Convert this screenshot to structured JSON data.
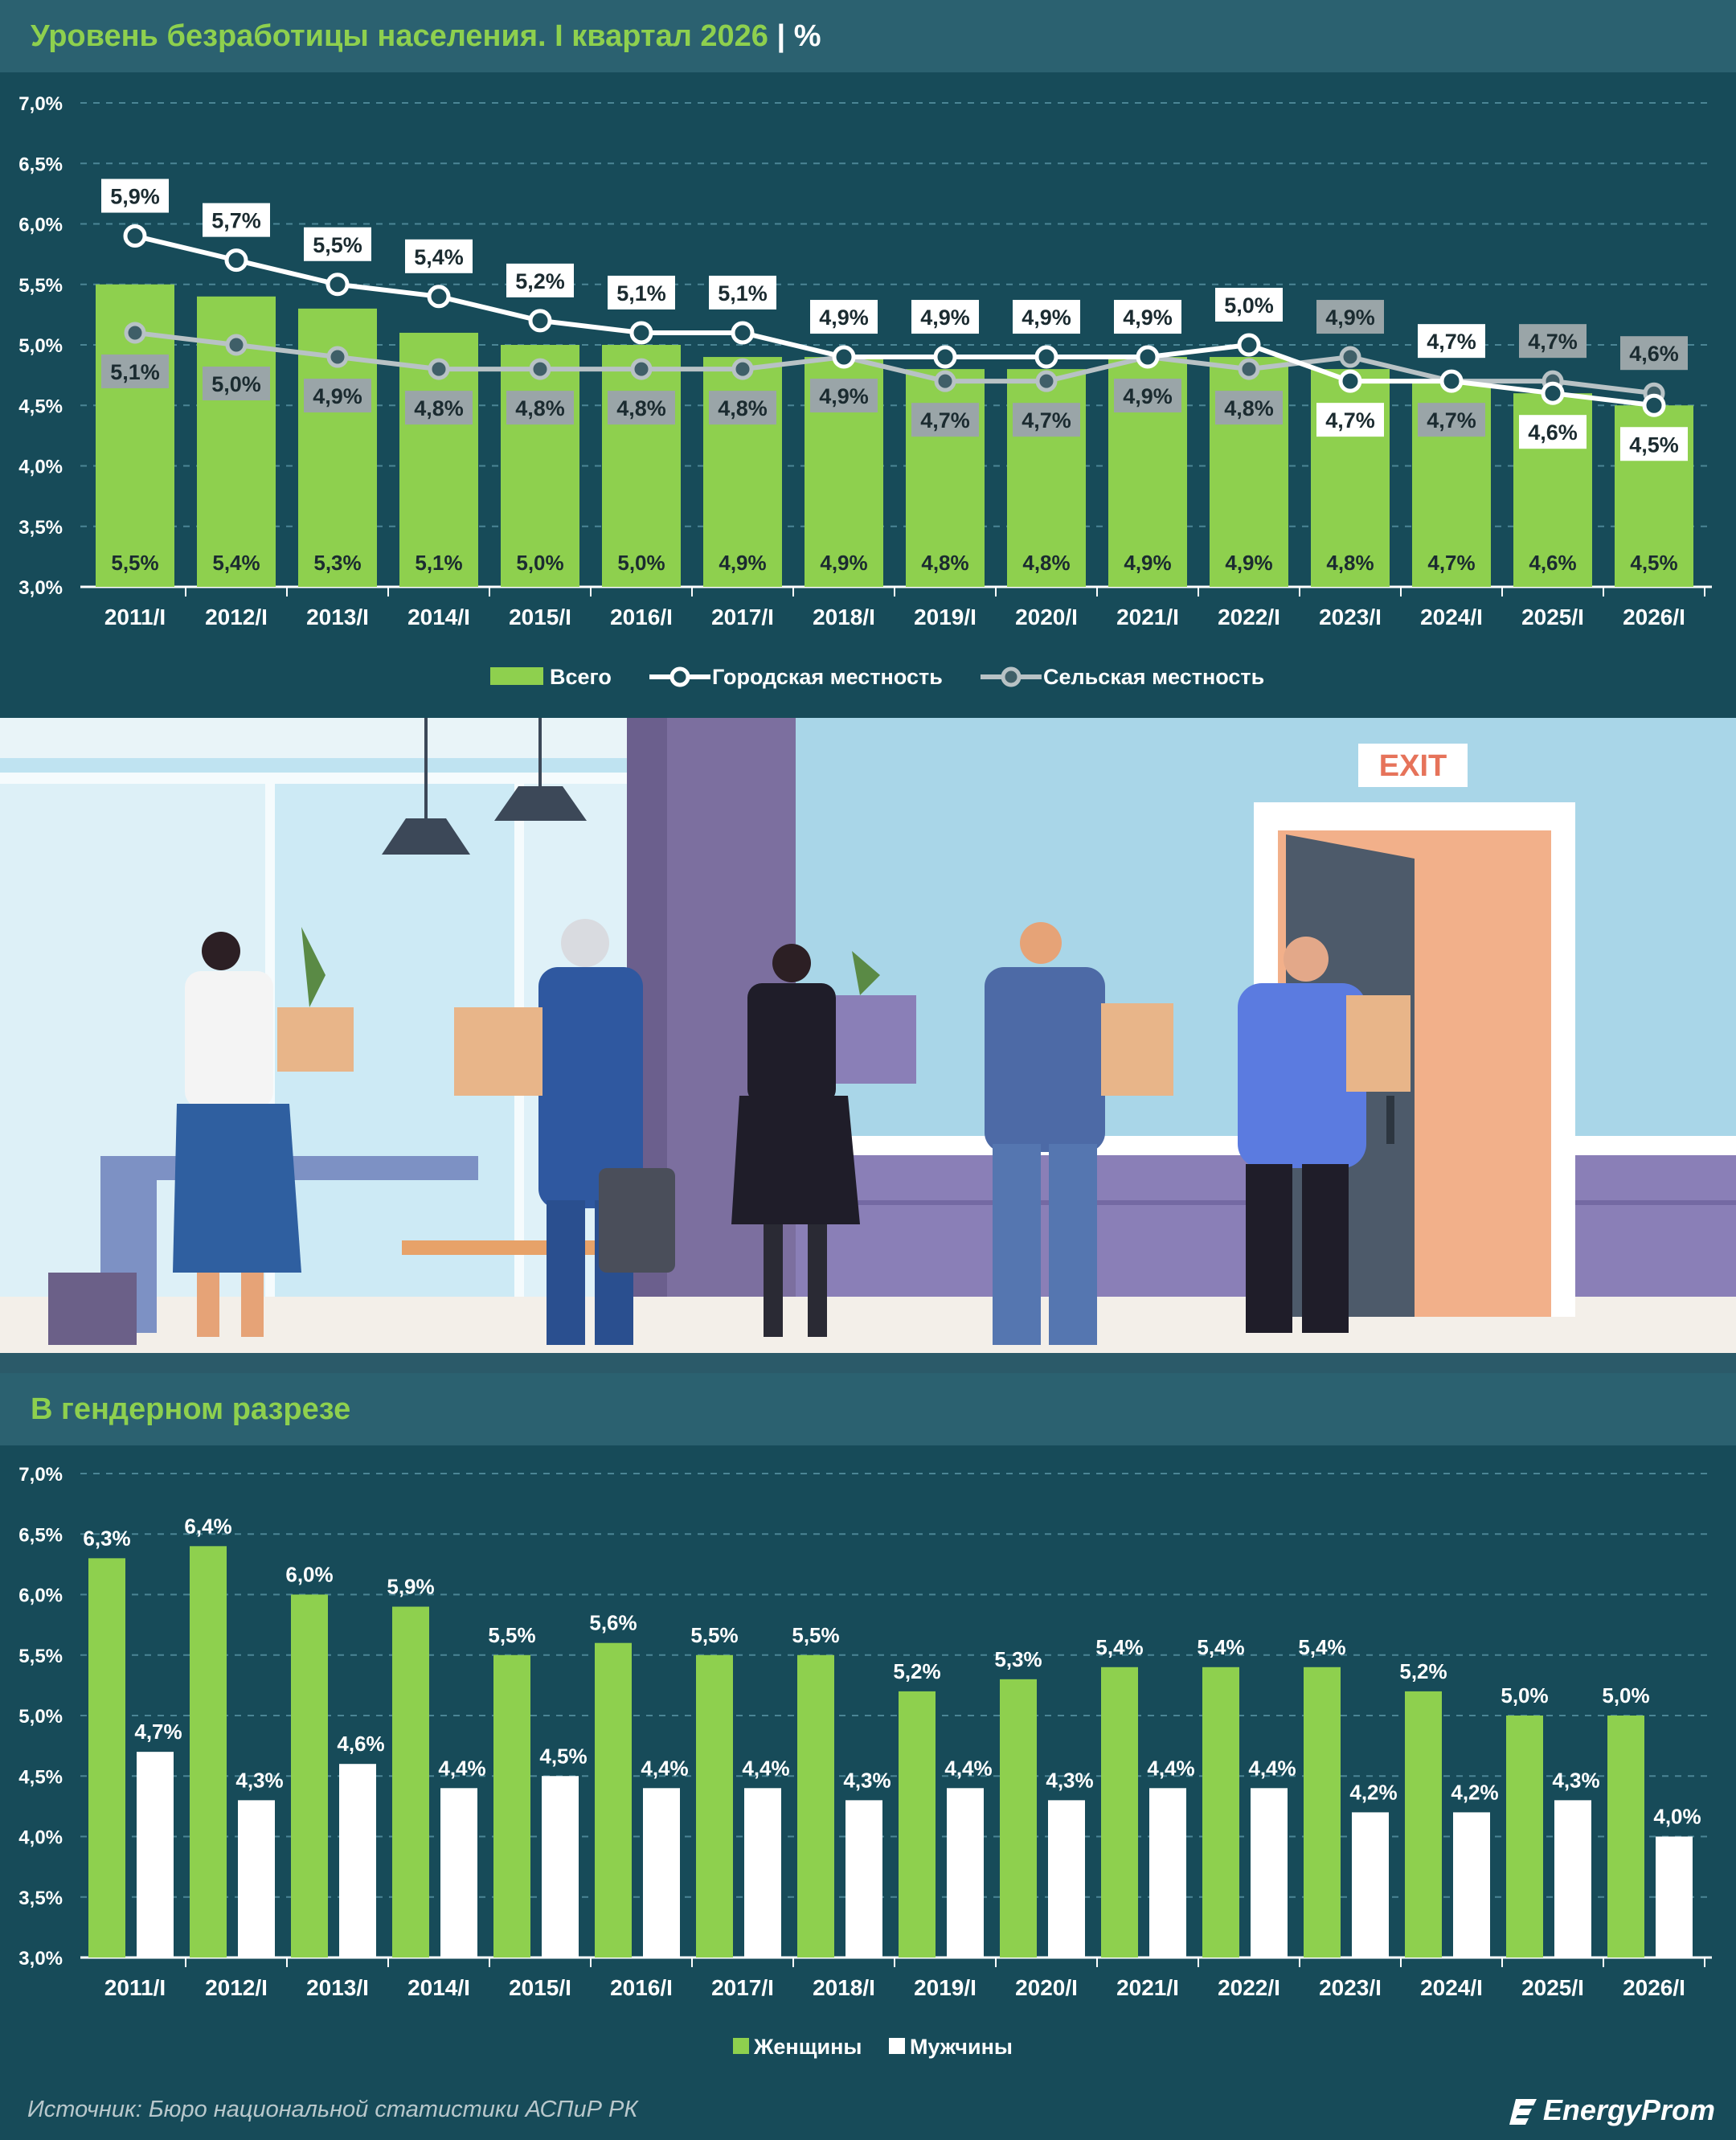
{
  "charts_meta": {
    "title1": "Уровень безработицы населения. I квартал 2026",
    "title1_sep": "|",
    "title1_unit": "%",
    "title2": "В гендерном разрезе",
    "exit_sign": "EXIT"
  },
  "footer": {
    "source": "Источник: Бюро национальной статистики АСПиР РК",
    "brand": "EnergyProm"
  },
  "colors": {
    "green": "#8ed04e",
    "white": "#ffffff",
    "gray": "#9aa5a8",
    "panel": "#174b59",
    "header": "#2b6170"
  },
  "chart_data": [
    {
      "type": "bar",
      "title": "Уровень безработицы населения. I квартал 2026",
      "ylim": [
        3.0,
        7.0
      ],
      "yticks": [
        "3,0%",
        "3,5%",
        "4,0%",
        "4,5%",
        "5,0%",
        "5,5%",
        "6,0%",
        "6,5%",
        "7,0%"
      ],
      "grid": true,
      "legend_position": "bottom-center",
      "categories": [
        "2011/I",
        "2012/I",
        "2013/I",
        "2014/I",
        "2015/I",
        "2016/I",
        "2017/I",
        "2018/I",
        "2019/I",
        "2020/I",
        "2021/I",
        "2022/I",
        "2023/I",
        "2024/I",
        "2025/I",
        "2026/I"
      ],
      "series": [
        {
          "name": "Всего",
          "kind": "bar",
          "values": [
            5.5,
            5.4,
            5.3,
            5.1,
            5.0,
            5.0,
            4.9,
            4.9,
            4.8,
            4.8,
            4.9,
            4.9,
            4.8,
            4.7,
            4.6,
            4.5
          ],
          "labels": [
            "5,5%",
            "5,4%",
            "5,3%",
            "5,1%",
            "5,0%",
            "5,0%",
            "4,9%",
            "4,9%",
            "4,8%",
            "4,8%",
            "4,9%",
            "4,9%",
            "4,8%",
            "4,7%",
            "4,6%",
            "4,5%"
          ]
        },
        {
          "name": "Городская местность",
          "kind": "line",
          "values": [
            5.9,
            5.7,
            5.5,
            5.4,
            5.2,
            5.1,
            5.1,
            4.9,
            4.9,
            4.9,
            4.9,
            5.0,
            4.7,
            4.7,
            4.6,
            4.5
          ],
          "labels": [
            "5,9%",
            "5,7%",
            "5,5%",
            "5,4%",
            "5,2%",
            "5,1%",
            "5,1%",
            "4,9%",
            "4,9%",
            "4,9%",
            "4,9%",
            "5,0%",
            "4,7%",
            "4,7%",
            "4,6%",
            "4,5%"
          ]
        },
        {
          "name": "Сельская местность",
          "kind": "line",
          "values": [
            5.1,
            5.0,
            4.9,
            4.8,
            4.8,
            4.8,
            4.8,
            4.9,
            4.7,
            4.7,
            4.9,
            4.8,
            4.9,
            4.7,
            4.7,
            4.6
          ],
          "labels": [
            "5,1%",
            "5,0%",
            "4,9%",
            "4,8%",
            "4,8%",
            "4,8%",
            "4,8%",
            "4,9%",
            "4,7%",
            "4,7%",
            "4,9%",
            "4,8%",
            "4,9%",
            "4,7%",
            "4,7%",
            "4,6%"
          ]
        }
      ]
    },
    {
      "type": "bar",
      "title": "В гендерном разрезе",
      "ylim": [
        3.0,
        7.0
      ],
      "yticks": [
        "3,0%",
        "3,5%",
        "4,0%",
        "4,5%",
        "5,0%",
        "5,5%",
        "6,0%",
        "6,5%",
        "7,0%"
      ],
      "grid": true,
      "legend_position": "bottom-center",
      "categories": [
        "2011/I",
        "2012/I",
        "2013/I",
        "2014/I",
        "2015/I",
        "2016/I",
        "2017/I",
        "2018/I",
        "2019/I",
        "2020/I",
        "2021/I",
        "2022/I",
        "2023/I",
        "2024/I",
        "2025/I",
        "2026/I"
      ],
      "series": [
        {
          "name": "Женщины",
          "values": [
            6.3,
            6.4,
            6.0,
            5.9,
            5.5,
            5.6,
            5.5,
            5.5,
            5.2,
            5.3,
            5.4,
            5.4,
            5.4,
            5.2,
            5.0,
            5.0
          ],
          "labels": [
            "6,3%",
            "6,4%",
            "6,0%",
            "5,9%",
            "5,5%",
            "5,6%",
            "5,5%",
            "5,5%",
            "5,2%",
            "5,3%",
            "5,4%",
            "5,4%",
            "5,4%",
            "5,2%",
            "5,0%",
            "5,0%"
          ]
        },
        {
          "name": "Мужчины",
          "values": [
            4.7,
            4.3,
            4.6,
            4.4,
            4.5,
            4.4,
            4.4,
            4.3,
            4.4,
            4.3,
            4.4,
            4.4,
            4.2,
            4.2,
            4.3,
            4.0
          ],
          "labels": [
            "4,7%",
            "4,3%",
            "4,6%",
            "4,4%",
            "4,5%",
            "4,4%",
            "4,4%",
            "4,3%",
            "4,4%",
            "4,3%",
            "4,4%",
            "4,4%",
            "4,2%",
            "4,2%",
            "4,3%",
            "4,0%"
          ]
        }
      ]
    }
  ]
}
